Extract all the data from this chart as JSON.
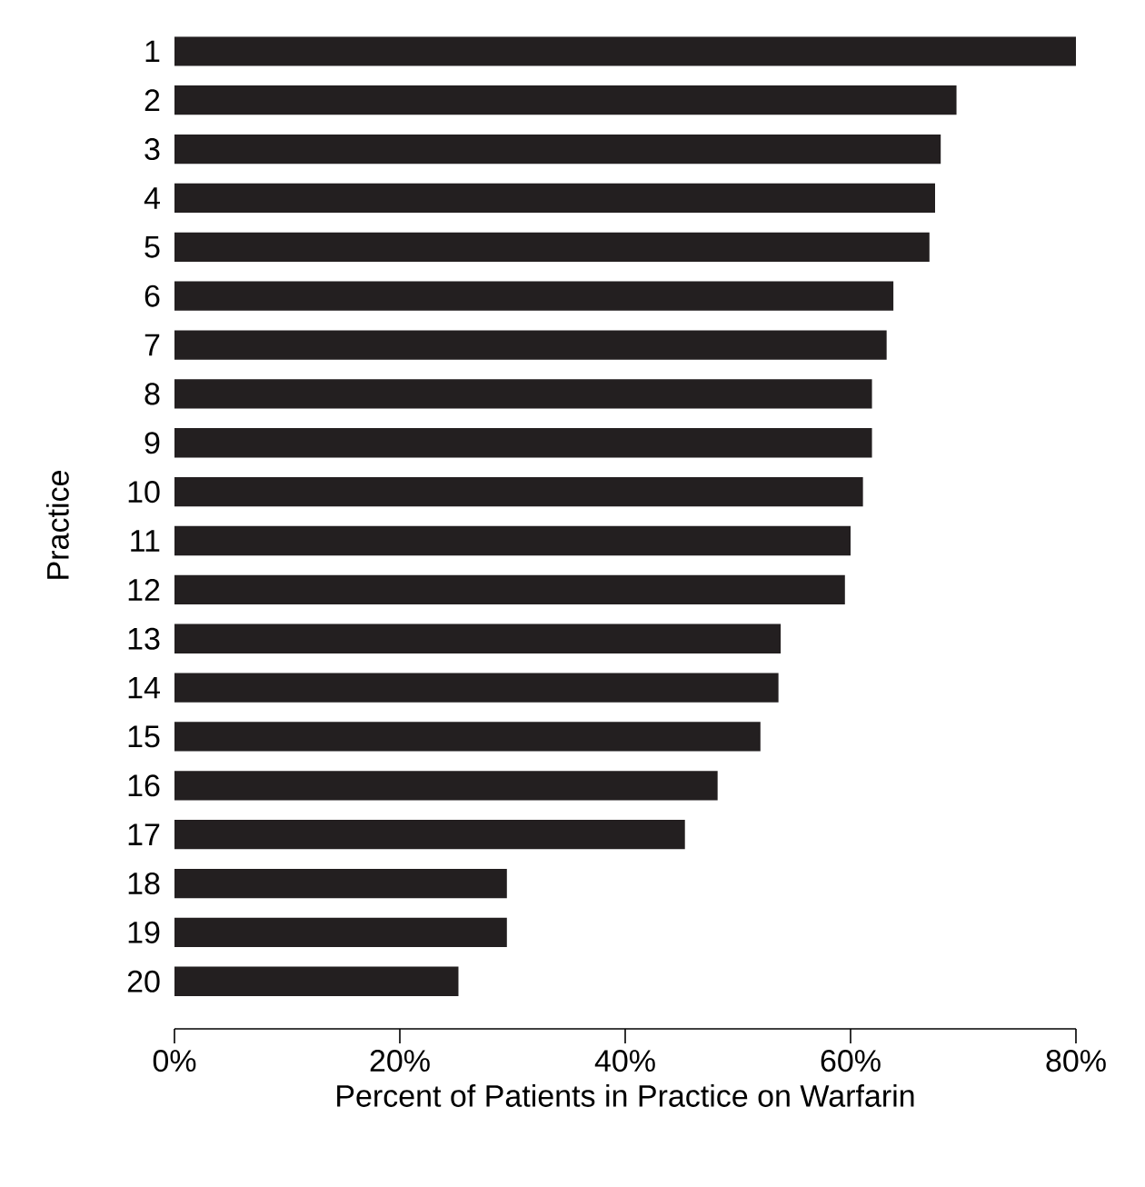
{
  "chart_data": {
    "type": "bar",
    "orientation": "horizontal",
    "xlabel": "Percent of Patients in Practice on Warfarin",
    "ylabel": "Practice",
    "categories": [
      "1",
      "2",
      "3",
      "4",
      "5",
      "6",
      "7",
      "8",
      "9",
      "10",
      "11",
      "12",
      "13",
      "14",
      "15",
      "16",
      "17",
      "18",
      "19",
      "20"
    ],
    "values": [
      80,
      69.4,
      68.0,
      67.5,
      67.0,
      63.8,
      63.2,
      61.9,
      61.9,
      61.1,
      60.0,
      59.5,
      53.8,
      53.6,
      52.0,
      48.2,
      45.3,
      29.5,
      29.5,
      25.2
    ],
    "color": "#231f20",
    "xlim": [
      0,
      80
    ],
    "xticks": [
      {
        "value": 0,
        "label": "0%"
      },
      {
        "value": 20,
        "label": "20%"
      },
      {
        "value": 40,
        "label": "40%"
      },
      {
        "value": 60,
        "label": "60%"
      },
      {
        "value": 80,
        "label": "80%"
      }
    ]
  }
}
